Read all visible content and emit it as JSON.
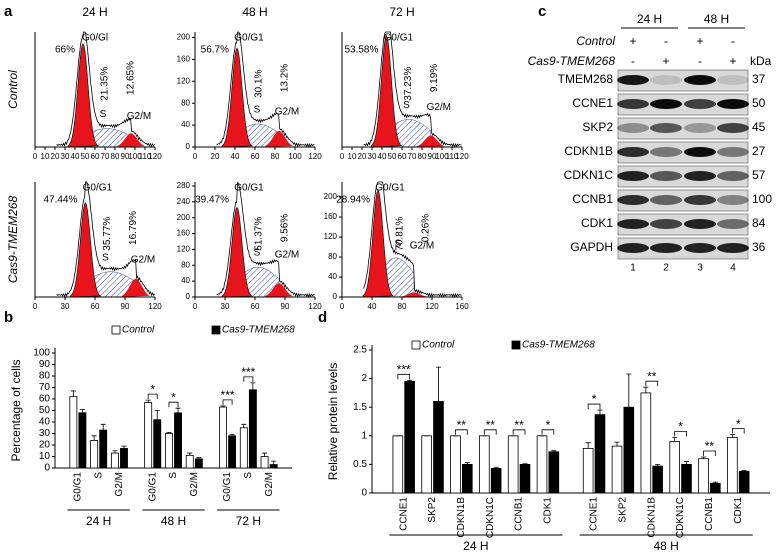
{
  "figure": {
    "panel_a": {
      "label": "a",
      "columns": [
        "24 H",
        "48 H",
        "72 H"
      ],
      "rows": [
        "Control",
        "Cas9-TMEM268"
      ],
      "plots": [
        {
          "xlim": [
            0,
            120
          ],
          "xticks": [
            0,
            10,
            20,
            30,
            40,
            50,
            60,
            70,
            80,
            90,
            100,
            110,
            120
          ],
          "labels": {
            "g1": "G0/Gl",
            "g1_pct": "66%",
            "s_pct": "21.35%",
            "g2m_pct": "12.65%",
            "s": "S",
            "g2m": "G2/M"
          }
        },
        {
          "xlim": [
            0,
            120
          ],
          "xticks": [
            0,
            20,
            40,
            60,
            80,
            100,
            120
          ],
          "ylim": [
            0,
            210
          ],
          "yticks": [
            0,
            40,
            80,
            120,
            160,
            200
          ],
          "labels": {
            "g1": "G0/G1",
            "g1_pct": "56.7%",
            "s_pct": "30.1%",
            "g2m_pct": "13.2%",
            "s": "S",
            "g2m": "G2/M"
          }
        },
        {
          "xlim": [
            0,
            120
          ],
          "xticks": [
            0,
            10,
            20,
            30,
            40,
            50,
            60,
            70,
            80,
            90,
            100,
            110,
            120
          ],
          "labels": {
            "g1": "G0/G1",
            "g1_pct": "53.58%",
            "s_pct": "37.23%",
            "g2m_pct": "9.19%",
            "s": "S",
            "g2m": "G2/M"
          }
        },
        {
          "xlim": [
            0,
            120
          ],
          "xticks": [
            0,
            30,
            60,
            90,
            120
          ],
          "labels": {
            "g1": "G0/G1",
            "g1_pct": "47.44%",
            "s_pct": "35.77%",
            "g2m_pct": "16.79%",
            "s": "S",
            "g2m": "G2/M"
          }
        },
        {
          "xlim": [
            0,
            120
          ],
          "xticks": [
            0,
            30,
            60,
            90,
            120
          ],
          "ylim": [
            0,
            290
          ],
          "yticks": [
            0,
            40,
            80,
            120,
            160,
            200,
            240,
            280
          ],
          "labels": {
            "g1": "G0/G1",
            "g1_pct": "39.47%",
            "s_pct": "51.37%",
            "g2m_pct": "9.56%",
            "s": "S",
            "g2m": "G2/M"
          }
        },
        {
          "xlim": [
            0,
            160
          ],
          "xticks": [
            0,
            40,
            80,
            120,
            160
          ],
          "ylim": [
            0,
            230
          ],
          "yticks": [
            0,
            40,
            80,
            120,
            160,
            200
          ],
          "labels": {
            "g1": "G0/G1",
            "g1_pct": "28.94%",
            "s_pct": "70.81%",
            "g2m_pct": "0.26%",
            "s": "S",
            "g2m": "G2/M"
          }
        }
      ]
    },
    "panel_c": {
      "label": "c",
      "groups": [
        "24 H",
        "48 H"
      ],
      "conditions": [
        {
          "name": "Control",
          "signs": [
            "+",
            "-",
            "+",
            "-"
          ]
        },
        {
          "name": "Cas9-TMEM268",
          "signs": [
            "-",
            "+",
            "-",
            "+"
          ]
        }
      ],
      "unit": "kDa",
      "proteins": [
        {
          "name": "TMEM268",
          "kda": 37
        },
        {
          "name": "CCNE1",
          "kda": 50
        },
        {
          "name": "SKP2",
          "kda": 45
        },
        {
          "name": "CDKN1B",
          "kda": 27
        },
        {
          "name": "CDKN1C",
          "kda": 57
        },
        {
          "name": "CCNB1",
          "kda": 100
        },
        {
          "name": "CDK1",
          "kda": 84
        },
        {
          "name": "GAPDH",
          "kda": 36
        }
      ],
      "lanes": [
        1,
        2,
        3,
        4
      ]
    }
  },
  "chart_data": [
    {
      "type": "bar",
      "panel_label": "b",
      "ylabel": "Percentage of cells",
      "categories": [
        "G0/G1",
        "S",
        "G2/M",
        "G0/G1",
        "S",
        "G2/M",
        "G0/G1",
        "S",
        "G2/M"
      ],
      "groups": [
        "24 H",
        "48 H",
        "72 H"
      ],
      "series": [
        {
          "name": "Control",
          "color": "#ffffff",
          "values": [
            62,
            24,
            13,
            57,
            30,
            11,
            53,
            35,
            10
          ],
          "errors": [
            5,
            4,
            2,
            2,
            1,
            2,
            1,
            3,
            3
          ]
        },
        {
          "name": "Cas9-TMEM268",
          "color": "#000000",
          "values": [
            48,
            33,
            17,
            42,
            48,
            8,
            28,
            68,
            3
          ],
          "errors": [
            3,
            5,
            2,
            8,
            4,
            1,
            1,
            6,
            3
          ]
        }
      ],
      "significance": [
        null,
        null,
        null,
        "*",
        "*",
        null,
        "***",
        "***",
        null
      ],
      "ylim": [
        0,
        100
      ],
      "yticks": [
        0,
        10,
        20,
        30,
        40,
        50,
        60,
        70,
        80,
        90,
        100
      ]
    },
    {
      "type": "bar",
      "panel_label": "d",
      "ylabel": "Relative protein levels",
      "categories": [
        "CCNE1",
        "SKP2",
        "CDKN1B",
        "CDKN1C",
        "CCNB1",
        "CDK1",
        "CCNE1",
        "SKP2",
        "CDKN1B",
        "CDKN1C",
        "CCNB1",
        "CDK1"
      ],
      "groups": [
        "24 H",
        "48 H"
      ],
      "series": [
        {
          "name": "Control",
          "color": "#ffffff",
          "values": [
            1,
            1,
            1,
            1,
            1,
            1,
            0.78,
            0.82,
            1.75,
            0.9,
            0.6,
            0.97
          ],
          "errors": [
            0,
            0,
            0,
            0,
            0,
            0,
            0.1,
            0.07,
            0.1,
            0.07,
            0.03,
            0.05
          ]
        },
        {
          "name": "Cas9-TMEM268",
          "color": "#000000",
          "values": [
            1.95,
            1.6,
            0.5,
            0.43,
            0.5,
            0.72,
            1.37,
            1.5,
            0.47,
            0.5,
            0.17,
            0.38
          ],
          "errors": [
            0.02,
            0.6,
            0.03,
            0.02,
            0.01,
            0.02,
            0.08,
            0.58,
            0.03,
            0.05,
            0.02,
            0.01
          ]
        }
      ],
      "significance": [
        "***",
        null,
        "**",
        "**",
        "**",
        "*",
        "*",
        null,
        "**",
        "*",
        "**",
        "*"
      ],
      "ylim": [
        0,
        2.5
      ],
      "yticks": [
        0,
        0.5,
        1,
        1.5,
        2,
        2.5
      ]
    }
  ]
}
